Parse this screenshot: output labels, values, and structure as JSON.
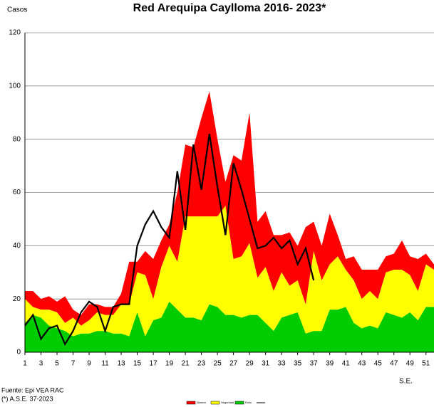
{
  "chart_data": {
    "type": "stacked-area",
    "title": "Red Arequipa Caylloma 2016- 2023*",
    "y_label": "Casos",
    "x_label": "S.E.",
    "source": "Fuente: Epi VEA RAC",
    "note": "(*) A.S.E. 37-2023",
    "x": [
      1,
      2,
      3,
      4,
      5,
      6,
      7,
      8,
      9,
      10,
      11,
      12,
      13,
      14,
      15,
      16,
      17,
      18,
      19,
      20,
      21,
      22,
      23,
      24,
      25,
      26,
      27,
      28,
      29,
      30,
      31,
      32,
      33,
      34,
      35,
      36,
      37,
      38,
      39,
      40,
      41,
      42,
      43,
      44,
      45,
      46,
      47,
      48,
      49,
      50,
      51,
      52
    ],
    "xlim": [
      1,
      52
    ],
    "xticks": [
      1,
      3,
      5,
      7,
      9,
      11,
      13,
      15,
      17,
      19,
      21,
      23,
      25,
      27,
      29,
      31,
      33,
      35,
      37,
      39,
      41,
      43,
      45,
      47,
      49,
      51
    ],
    "ylim": [
      0,
      120
    ],
    "yticks": [
      0,
      20,
      40,
      60,
      80,
      100,
      120
    ],
    "grid": true,
    "series": [
      {
        "name": "Éxito",
        "color": "#00cc00",
        "values": [
          11,
          14,
          13,
          10,
          9,
          8,
          6,
          7,
          7,
          8,
          8,
          7,
          7,
          6,
          15,
          6,
          12,
          13,
          19,
          16,
          13,
          13,
          12,
          18,
          17,
          14,
          14,
          13,
          14,
          14,
          11,
          8,
          13,
          14,
          15,
          7,
          8,
          8,
          16,
          16,
          17,
          11,
          9,
          10,
          9,
          15,
          14,
          13,
          15,
          12,
          17,
          17
        ]
      },
      {
        "name": "Seguridad",
        "color": "#ffff00",
        "values": [
          9,
          3,
          3,
          6,
          6,
          3,
          7,
          3,
          5,
          7,
          6,
          7,
          11,
          12,
          15,
          23,
          8,
          19,
          21,
          18,
          38,
          38,
          39,
          33,
          34,
          41,
          21,
          23,
          27,
          14,
          21,
          15,
          17,
          11,
          12,
          11,
          30,
          19,
          17,
          20,
          14,
          16,
          11,
          13,
          11,
          15,
          17,
          18,
          14,
          11,
          16,
          14
        ]
      },
      {
        "name": "Alarma",
        "color": "#ff0000",
        "values": [
          3,
          6,
          4,
          5,
          4,
          10,
          3,
          4,
          6,
          3,
          3,
          3,
          4,
          16,
          4,
          9,
          15,
          10,
          8,
          26,
          27,
          26,
          37,
          47,
          29,
          9,
          39,
          36,
          49,
          21,
          21,
          21,
          14,
          20,
          13,
          29,
          11,
          13,
          19,
          8,
          4,
          9,
          11,
          8,
          11,
          6,
          6,
          11,
          7,
          12,
          4,
          2
        ]
      }
    ],
    "line": {
      "color": "#000000",
      "values": [
        10,
        14,
        5,
        9,
        10,
        3,
        8,
        15,
        19,
        17,
        8,
        17,
        18,
        18,
        40,
        48,
        53,
        47,
        43,
        68,
        46,
        78,
        61,
        82,
        62,
        44,
        71,
        61,
        50,
        39,
        40,
        43,
        39,
        42,
        33,
        39,
        27,
        null,
        null,
        null,
        null,
        null,
        null,
        null,
        null,
        null,
        null,
        null,
        null,
        null,
        null,
        null
      ]
    }
  }
}
